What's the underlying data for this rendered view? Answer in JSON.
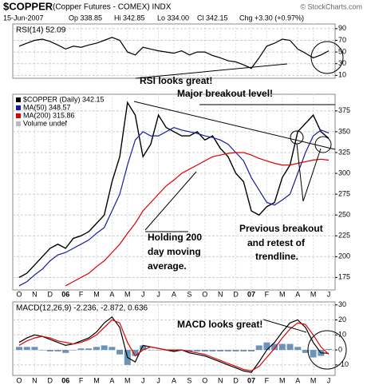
{
  "header": {
    "title": "$COPPER",
    "subtitle": "(Copper Futures - COMEX) INDX",
    "date": "15-Jun-2007",
    "quote": [
      "Op 338.85",
      "Hi 342.85",
      "Lo 334.00",
      "Cl 342.15",
      "Chg +3.30 (+0.97%)"
    ],
    "copyright": "© StockCharts.com"
  },
  "chart_data": [
    {
      "type": "line",
      "label": "RSI(14) 52.09",
      "ylim": [
        5,
        98
      ],
      "yticks": [
        10,
        30,
        50,
        70,
        90
      ],
      "grid": true,
      "annotations": [
        "RSI looks great!"
      ],
      "series": [
        {
          "name": "RSI(14)",
          "color": "#000000",
          "values": [
            60,
            65,
            70,
            72,
            68,
            62,
            55,
            60,
            58,
            62,
            65,
            70,
            75,
            70,
            50,
            45,
            58,
            55,
            52,
            50,
            48,
            52,
            45,
            50,
            50,
            44,
            40,
            35,
            33,
            28,
            22,
            40,
            60,
            65,
            72,
            70,
            55,
            48,
            40,
            45,
            52.09
          ]
        }
      ]
    },
    {
      "type": "line",
      "ylim": [
        160,
        395
      ],
      "yticks": [
        175,
        200,
        225,
        250,
        275,
        300,
        325,
        350,
        375
      ],
      "grid": true,
      "categories": [
        "O",
        null,
        "N",
        null,
        "D",
        null,
        "06",
        null,
        "F",
        null,
        "M",
        null,
        "A",
        null,
        "M",
        null,
        "J",
        null,
        "J",
        null,
        "A",
        null,
        "S",
        null,
        "O",
        null,
        "N",
        null,
        "D",
        null,
        "07",
        null,
        "F",
        null,
        "M",
        null,
        "A",
        null,
        "M",
        null,
        "J"
      ],
      "legend_extra": [
        "Volume undef"
      ],
      "annotations": [
        "Major breakout level!",
        "Holding 200",
        "day moving",
        "average.",
        "Previous breakout",
        "and retest of",
        "trendline."
      ],
      "series": [
        {
          "name": "$COPPER (Daily) 342.15",
          "color": "#000000",
          "values": [
            175,
            180,
            190,
            200,
            210,
            215,
            210,
            222,
            225,
            230,
            240,
            250,
            290,
            320,
            385,
            370,
            320,
            335,
            370,
            355,
            350,
            345,
            345,
            350,
            340,
            345,
            330,
            320,
            300,
            290,
            255,
            250,
            260,
            265,
            295,
            310,
            350,
            360,
            370,
            350,
            342.15
          ]
        },
        {
          "name": "MA(50) 348.57",
          "color": "#1a1aa0",
          "values": [
            165,
            170,
            178,
            185,
            195,
            202,
            205,
            210,
            215,
            220,
            228,
            235,
            255,
            275,
            310,
            340,
            350,
            345,
            345,
            350,
            355,
            352,
            350,
            348,
            345,
            343,
            340,
            335,
            325,
            315,
            295,
            280,
            265,
            262,
            268,
            275,
            300,
            325,
            345,
            352,
            348.57
          ]
        },
        {
          "name": "MA(200) 315.86",
          "color": "#e00000",
          "values": [
            null,
            null,
            null,
            null,
            null,
            null,
            165,
            170,
            175,
            180,
            188,
            195,
            205,
            215,
            228,
            240,
            255,
            265,
            275,
            285,
            292,
            300,
            305,
            310,
            315,
            320,
            322,
            324,
            325,
            325,
            322,
            318,
            315,
            312,
            310,
            310,
            312,
            314,
            316,
            317,
            315.86
          ]
        }
      ]
    },
    {
      "type": "line",
      "label": "MACD(12,26,9) -2.236, -2.872, 0.636",
      "ylim": [
        -17,
        32
      ],
      "yticks": [
        -10,
        0,
        10,
        20,
        30
      ],
      "grid": true,
      "categories": [
        "O",
        null,
        "N",
        null,
        "D",
        null,
        "06",
        null,
        "F",
        null,
        "M",
        null,
        "A",
        null,
        "M",
        null,
        "J",
        null,
        "J",
        null,
        "A",
        null,
        "S",
        null,
        "O",
        null,
        "N",
        null,
        "D",
        null,
        "07",
        null,
        "F",
        null,
        "M",
        null,
        "A",
        null,
        "M",
        null,
        "J"
      ],
      "annotations": [
        "MACD looks great!"
      ],
      "series": [
        {
          "name": "Histogram",
          "type": "bar",
          "color": "#4a78a8",
          "values": [
            2,
            2,
            2,
            0,
            -1,
            -1,
            -2,
            0,
            1,
            1,
            2,
            3,
            2,
            -3,
            -10,
            -4,
            3,
            0,
            0,
            0,
            -1,
            0,
            -1,
            -1,
            -1,
            -1,
            -1,
            -1,
            -1,
            -1,
            -1,
            3,
            5,
            4,
            4,
            4,
            2,
            -2,
            -5,
            -4,
            0.636
          ]
        },
        {
          "name": "MACD",
          "color": "#000000",
          "values": [
            5,
            8,
            10,
            9,
            7,
            5,
            3,
            4,
            6,
            8,
            12,
            18,
            22,
            15,
            -5,
            -8,
            3,
            2,
            1,
            0,
            -1,
            0,
            -2,
            -3,
            -4,
            -6,
            -8,
            -10,
            -12,
            -14,
            -15,
            -8,
            0,
            5,
            12,
            18,
            20,
            15,
            5,
            -2,
            -2.236
          ]
        },
        {
          "name": "Signal",
          "color": "#e00000",
          "values": [
            3,
            6,
            8,
            9,
            8,
            6,
            5,
            4,
            5,
            7,
            10,
            15,
            20,
            18,
            5,
            -4,
            0,
            2,
            1,
            0,
            0,
            0,
            -1,
            -2,
            -3,
            -5,
            -7,
            -9,
            -11,
            -13,
            -14,
            -11,
            -5,
            1,
            8,
            14,
            18,
            17,
            10,
            2,
            -2.872
          ]
        }
      ]
    }
  ]
}
